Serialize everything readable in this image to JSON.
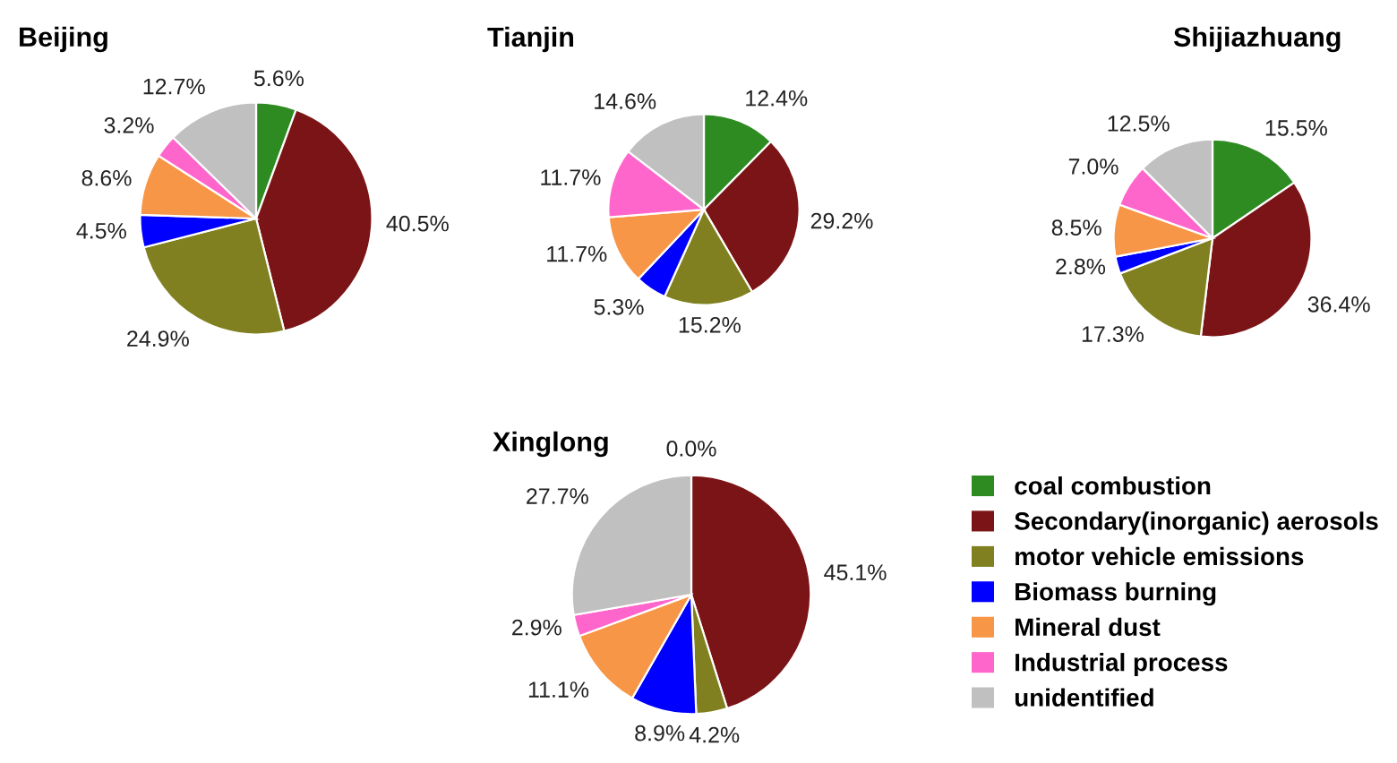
{
  "chart_data": [
    {
      "type": "pie",
      "title": "Beijing",
      "categories": [
        "coal combustion",
        "Secondary(inorganic) aerosols",
        "motor vehicle emissions",
        "Biomass burning",
        "Mineral dust",
        "Industrial process",
        "unidentified"
      ],
      "values": [
        5.6,
        40.5,
        24.9,
        4.5,
        8.6,
        3.2,
        12.7
      ],
      "value_labels": [
        "5.6%",
        "40.5%",
        "24.9%",
        "4.5%",
        "8.6%",
        "3.2%",
        "12.7%"
      ],
      "colors": [
        "#2e8b22",
        "#7b1416",
        "#808020",
        "#0000ff",
        "#f79646",
        "#ff66cc",
        "#c0c0c0"
      ],
      "legend": "bottom right"
    },
    {
      "type": "pie",
      "title": "Tianjin",
      "categories": [
        null,
        null,
        null,
        null,
        null,
        null,
        null
      ],
      "values": [
        12.4,
        29.2,
        15.2,
        5.3,
        11.7,
        11.7,
        14.6
      ],
      "value_labels": [
        "12.4%",
        "29.2%",
        "15.2%",
        "5.3%",
        "11.7%",
        "11.7%",
        "14.6%"
      ],
      "colors": [
        "#2e8b22",
        "#7b1416",
        "#808020",
        "#0000ff",
        "#f79646",
        "#ff66cc",
        "#c0c0c0"
      ]
    },
    {
      "type": "pie",
      "title": "Shijiazhuang",
      "categories": [
        null,
        null,
        null,
        null,
        null,
        null,
        null
      ],
      "values": [
        15.5,
        36.4,
        17.3,
        2.8,
        8.5,
        7.0,
        12.5
      ],
      "value_labels": [
        "15.5%",
        "36.4%",
        "17.3%",
        "2.8%",
        "8.5%",
        "7.0%",
        "12.5%"
      ],
      "colors": [
        "#2e8b22",
        "#7b1416",
        "#808020",
        "#0000ff",
        "#f79646",
        "#ff66cc",
        "#c0c0c0"
      ]
    },
    {
      "type": "pie",
      "title": "Xinglong",
      "categories": [
        null,
        null,
        null,
        null,
        null,
        null,
        null
      ],
      "values": [
        0.0,
        45.1,
        4.2,
        8.9,
        11.1,
        2.9,
        27.7
      ],
      "value_labels": [
        "0.0%",
        "45.1%",
        "4.2%",
        "8.9%",
        "11.1%",
        "2.9%",
        "27.7%"
      ],
      "colors": [
        "#2e8b22",
        "#7b1416",
        "#808020",
        "#0000ff",
        "#f79646",
        "#ff66cc",
        "#c0c0c0"
      ]
    }
  ]
}
